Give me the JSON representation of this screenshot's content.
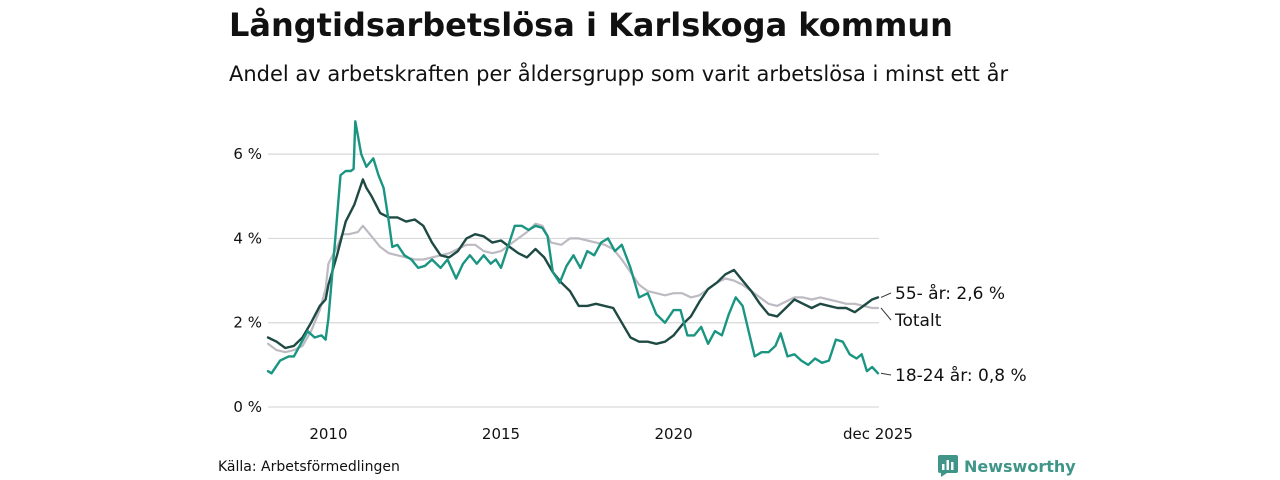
{
  "title": "Långtidsarbetslösa i Karlskoga kommun",
  "subtitle": "Andel av arbetskraften per åldersgrupp som varit arbetslösa i minst ett år",
  "source": "Källa: Arbetsförmedlingen",
  "brand": "Newsworthy",
  "colors": {
    "youth": "#1a9582",
    "older": "#1e4a43",
    "total": "#bdbac2",
    "grid": "#d9d9d9",
    "brand": "#3f9688"
  },
  "chart_data": {
    "type": "line",
    "title": "Långtidsarbetslösa i Karlskoga kommun",
    "xlabel": "",
    "ylabel": "",
    "xlim": [
      2008.25,
      2025.95
    ],
    "ylim": [
      0,
      7
    ],
    "yticks": [
      0,
      2,
      4,
      6
    ],
    "ytick_labels": [
      "0 %",
      "2 %",
      "4 %",
      "6 %"
    ],
    "xticks": [
      2010,
      2015,
      2020,
      2025.92
    ],
    "xtick_labels": [
      "2010",
      "2015",
      "2020",
      "dec 2025"
    ],
    "grid": true,
    "series": [
      {
        "name": "Totalt",
        "key": "total",
        "label": "Totalt",
        "points": [
          [
            2008.25,
            1.5
          ],
          [
            2008.5,
            1.35
          ],
          [
            2008.75,
            1.3
          ],
          [
            2009.0,
            1.35
          ],
          [
            2009.25,
            1.45
          ],
          [
            2009.5,
            1.8
          ],
          [
            2009.75,
            2.3
          ],
          [
            2009.92,
            2.8
          ],
          [
            2010.0,
            3.4
          ],
          [
            2010.25,
            3.8
          ],
          [
            2010.4,
            4.1
          ],
          [
            2010.6,
            4.1
          ],
          [
            2010.85,
            4.15
          ],
          [
            2011.0,
            4.3
          ],
          [
            2011.2,
            4.1
          ],
          [
            2011.5,
            3.8
          ],
          [
            2011.75,
            3.65
          ],
          [
            2012.0,
            3.6
          ],
          [
            2012.25,
            3.55
          ],
          [
            2012.5,
            3.5
          ],
          [
            2012.75,
            3.5
          ],
          [
            2013.0,
            3.55
          ],
          [
            2013.25,
            3.6
          ],
          [
            2013.5,
            3.65
          ],
          [
            2013.75,
            3.75
          ],
          [
            2014.0,
            3.85
          ],
          [
            2014.25,
            3.85
          ],
          [
            2014.5,
            3.7
          ],
          [
            2014.75,
            3.65
          ],
          [
            2015.0,
            3.7
          ],
          [
            2015.25,
            3.85
          ],
          [
            2015.5,
            4.0
          ],
          [
            2015.75,
            4.15
          ],
          [
            2016.0,
            4.35
          ],
          [
            2016.2,
            4.3
          ],
          [
            2016.45,
            3.9
          ],
          [
            2016.75,
            3.85
          ],
          [
            2017.0,
            4.0
          ],
          [
            2017.25,
            4.0
          ],
          [
            2017.5,
            3.95
          ],
          [
            2017.75,
            3.9
          ],
          [
            2018.0,
            3.85
          ],
          [
            2018.25,
            3.75
          ],
          [
            2018.5,
            3.5
          ],
          [
            2018.75,
            3.2
          ],
          [
            2019.0,
            2.9
          ],
          [
            2019.25,
            2.75
          ],
          [
            2019.5,
            2.7
          ],
          [
            2019.75,
            2.65
          ],
          [
            2020.0,
            2.7
          ],
          [
            2020.25,
            2.7
          ],
          [
            2020.5,
            2.6
          ],
          [
            2020.75,
            2.65
          ],
          [
            2021.0,
            2.8
          ],
          [
            2021.25,
            2.95
          ],
          [
            2021.5,
            3.05
          ],
          [
            2021.75,
            3.0
          ],
          [
            2022.0,
            2.9
          ],
          [
            2022.25,
            2.75
          ],
          [
            2022.5,
            2.6
          ],
          [
            2022.75,
            2.45
          ],
          [
            2023.0,
            2.4
          ],
          [
            2023.25,
            2.5
          ],
          [
            2023.5,
            2.6
          ],
          [
            2023.75,
            2.6
          ],
          [
            2024.0,
            2.55
          ],
          [
            2024.25,
            2.6
          ],
          [
            2024.5,
            2.55
          ],
          [
            2024.75,
            2.5
          ],
          [
            2025.0,
            2.45
          ],
          [
            2025.25,
            2.45
          ],
          [
            2025.5,
            2.4
          ],
          [
            2025.75,
            2.35
          ],
          [
            2025.92,
            2.35
          ]
        ]
      },
      {
        "name": "55- år",
        "key": "older",
        "label": "55- år: 2,6 %",
        "points": [
          [
            2008.25,
            1.65
          ],
          [
            2008.5,
            1.55
          ],
          [
            2008.75,
            1.4
          ],
          [
            2009.0,
            1.45
          ],
          [
            2009.25,
            1.65
          ],
          [
            2009.5,
            2.0
          ],
          [
            2009.75,
            2.4
          ],
          [
            2009.92,
            2.55
          ],
          [
            2010.0,
            2.9
          ],
          [
            2010.25,
            3.6
          ],
          [
            2010.5,
            4.4
          ],
          [
            2010.75,
            4.8
          ],
          [
            2011.0,
            5.4
          ],
          [
            2011.1,
            5.2
          ],
          [
            2011.25,
            5.0
          ],
          [
            2011.5,
            4.6
          ],
          [
            2011.75,
            4.5
          ],
          [
            2012.0,
            4.5
          ],
          [
            2012.25,
            4.4
          ],
          [
            2012.5,
            4.45
          ],
          [
            2012.75,
            4.3
          ],
          [
            2013.0,
            3.9
          ],
          [
            2013.25,
            3.6
          ],
          [
            2013.5,
            3.55
          ],
          [
            2013.75,
            3.7
          ],
          [
            2014.0,
            4.0
          ],
          [
            2014.25,
            4.1
          ],
          [
            2014.5,
            4.05
          ],
          [
            2014.75,
            3.9
          ],
          [
            2015.0,
            3.95
          ],
          [
            2015.25,
            3.8
          ],
          [
            2015.5,
            3.65
          ],
          [
            2015.75,
            3.55
          ],
          [
            2016.0,
            3.75
          ],
          [
            2016.25,
            3.55
          ],
          [
            2016.5,
            3.2
          ],
          [
            2016.75,
            2.95
          ],
          [
            2017.0,
            2.75
          ],
          [
            2017.25,
            2.4
          ],
          [
            2017.5,
            2.4
          ],
          [
            2017.75,
            2.45
          ],
          [
            2018.0,
            2.4
          ],
          [
            2018.25,
            2.35
          ],
          [
            2018.5,
            2.0
          ],
          [
            2018.75,
            1.65
          ],
          [
            2019.0,
            1.55
          ],
          [
            2019.25,
            1.55
          ],
          [
            2019.5,
            1.5
          ],
          [
            2019.75,
            1.55
          ],
          [
            2020.0,
            1.7
          ],
          [
            2020.25,
            1.95
          ],
          [
            2020.5,
            2.15
          ],
          [
            2020.75,
            2.5
          ],
          [
            2021.0,
            2.8
          ],
          [
            2021.25,
            2.95
          ],
          [
            2021.5,
            3.15
          ],
          [
            2021.75,
            3.25
          ],
          [
            2022.0,
            3.0
          ],
          [
            2022.25,
            2.75
          ],
          [
            2022.5,
            2.45
          ],
          [
            2022.75,
            2.2
          ],
          [
            2023.0,
            2.15
          ],
          [
            2023.25,
            2.35
          ],
          [
            2023.5,
            2.55
          ],
          [
            2023.75,
            2.45
          ],
          [
            2024.0,
            2.35
          ],
          [
            2024.25,
            2.45
          ],
          [
            2024.5,
            2.4
          ],
          [
            2024.75,
            2.35
          ],
          [
            2025.0,
            2.35
          ],
          [
            2025.25,
            2.25
          ],
          [
            2025.5,
            2.4
          ],
          [
            2025.75,
            2.55
          ],
          [
            2025.92,
            2.6
          ]
        ]
      },
      {
        "name": "18-24 år",
        "key": "youth",
        "label": "18-24 år: 0,8 %",
        "points": [
          [
            2008.25,
            0.85
          ],
          [
            2008.35,
            0.8
          ],
          [
            2008.6,
            1.1
          ],
          [
            2008.85,
            1.2
          ],
          [
            2009.0,
            1.2
          ],
          [
            2009.2,
            1.5
          ],
          [
            2009.4,
            1.8
          ],
          [
            2009.6,
            1.65
          ],
          [
            2009.8,
            1.7
          ],
          [
            2009.92,
            1.6
          ],
          [
            2010.0,
            2.1
          ],
          [
            2010.2,
            4.0
          ],
          [
            2010.35,
            5.5
          ],
          [
            2010.5,
            5.6
          ],
          [
            2010.65,
            5.6
          ],
          [
            2010.73,
            5.65
          ],
          [
            2010.78,
            6.78
          ],
          [
            2010.95,
            6.0
          ],
          [
            2011.1,
            5.7
          ],
          [
            2011.3,
            5.9
          ],
          [
            2011.45,
            5.5
          ],
          [
            2011.6,
            5.2
          ],
          [
            2011.75,
            4.4
          ],
          [
            2011.85,
            3.8
          ],
          [
            2012.0,
            3.85
          ],
          [
            2012.2,
            3.6
          ],
          [
            2012.4,
            3.5
          ],
          [
            2012.6,
            3.3
          ],
          [
            2012.8,
            3.35
          ],
          [
            2013.0,
            3.5
          ],
          [
            2013.25,
            3.3
          ],
          [
            2013.45,
            3.5
          ],
          [
            2013.7,
            3.05
          ],
          [
            2013.9,
            3.4
          ],
          [
            2014.1,
            3.6
          ],
          [
            2014.3,
            3.4
          ],
          [
            2014.5,
            3.6
          ],
          [
            2014.7,
            3.4
          ],
          [
            2014.85,
            3.5
          ],
          [
            2015.0,
            3.3
          ],
          [
            2015.2,
            3.8
          ],
          [
            2015.4,
            4.3
          ],
          [
            2015.6,
            4.3
          ],
          [
            2015.8,
            4.2
          ],
          [
            2016.0,
            4.3
          ],
          [
            2016.2,
            4.25
          ],
          [
            2016.35,
            4.05
          ],
          [
            2016.5,
            3.2
          ],
          [
            2016.7,
            2.95
          ],
          [
            2016.9,
            3.35
          ],
          [
            2017.1,
            3.6
          ],
          [
            2017.3,
            3.3
          ],
          [
            2017.5,
            3.7
          ],
          [
            2017.7,
            3.6
          ],
          [
            2017.9,
            3.9
          ],
          [
            2018.1,
            4.0
          ],
          [
            2018.3,
            3.7
          ],
          [
            2018.5,
            3.85
          ],
          [
            2018.75,
            3.3
          ],
          [
            2019.0,
            2.6
          ],
          [
            2019.25,
            2.7
          ],
          [
            2019.5,
            2.2
          ],
          [
            2019.75,
            2.0
          ],
          [
            2020.0,
            2.3
          ],
          [
            2020.2,
            2.3
          ],
          [
            2020.4,
            1.7
          ],
          [
            2020.6,
            1.7
          ],
          [
            2020.8,
            1.9
          ],
          [
            2021.0,
            1.5
          ],
          [
            2021.2,
            1.8
          ],
          [
            2021.4,
            1.7
          ],
          [
            2021.6,
            2.2
          ],
          [
            2021.8,
            2.6
          ],
          [
            2022.0,
            2.4
          ],
          [
            2022.2,
            1.7
          ],
          [
            2022.35,
            1.2
          ],
          [
            2022.55,
            1.3
          ],
          [
            2022.75,
            1.3
          ],
          [
            2022.95,
            1.45
          ],
          [
            2023.1,
            1.75
          ],
          [
            2023.3,
            1.2
          ],
          [
            2023.5,
            1.25
          ],
          [
            2023.7,
            1.1
          ],
          [
            2023.9,
            1.0
          ],
          [
            2024.1,
            1.15
          ],
          [
            2024.3,
            1.05
          ],
          [
            2024.5,
            1.1
          ],
          [
            2024.7,
            1.6
          ],
          [
            2024.9,
            1.55
          ],
          [
            2025.1,
            1.25
          ],
          [
            2025.3,
            1.15
          ],
          [
            2025.45,
            1.25
          ],
          [
            2025.6,
            0.85
          ],
          [
            2025.75,
            0.95
          ],
          [
            2025.92,
            0.8
          ]
        ]
      }
    ]
  }
}
